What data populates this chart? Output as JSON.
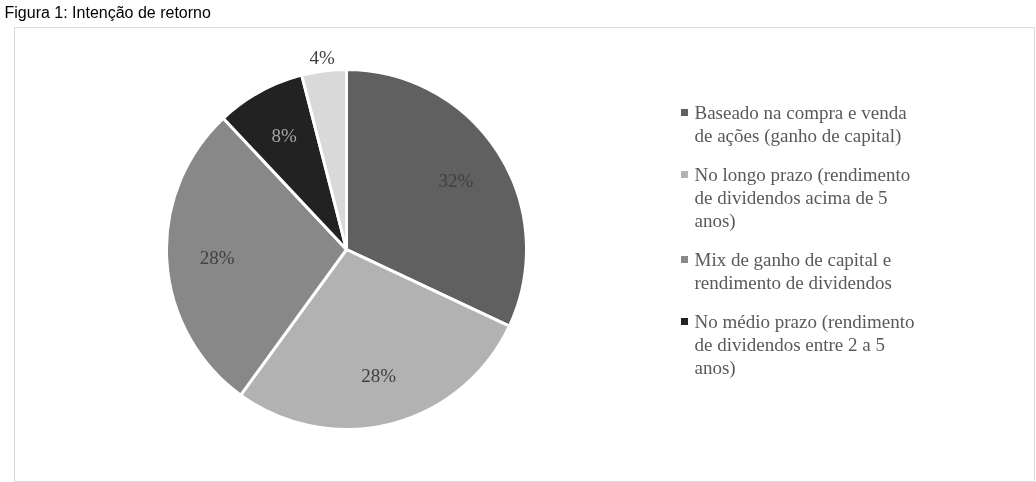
{
  "chart_data": {
    "type": "pie",
    "title": "Figura 1: Intenção de retorno",
    "categories": [
      "Baseado na compra e venda de ações (ganho de capital)",
      "No longo prazo (rendimento de dividendos acima de 5 anos)",
      "Mix de ganho de capital e rendimento de dividendos",
      "No médio prazo (rendimento de dividendos entre 2 a 5 anos)",
      null
    ],
    "values": [
      32,
      28,
      28,
      8,
      4
    ],
    "colors": [
      "#606060",
      "#b2b2b2",
      "#888888",
      "#222222",
      "#d9d9d9"
    ],
    "value_labels": [
      "32%",
      "28%",
      "28%",
      "8%",
      "4%"
    ],
    "legend": "right"
  }
}
